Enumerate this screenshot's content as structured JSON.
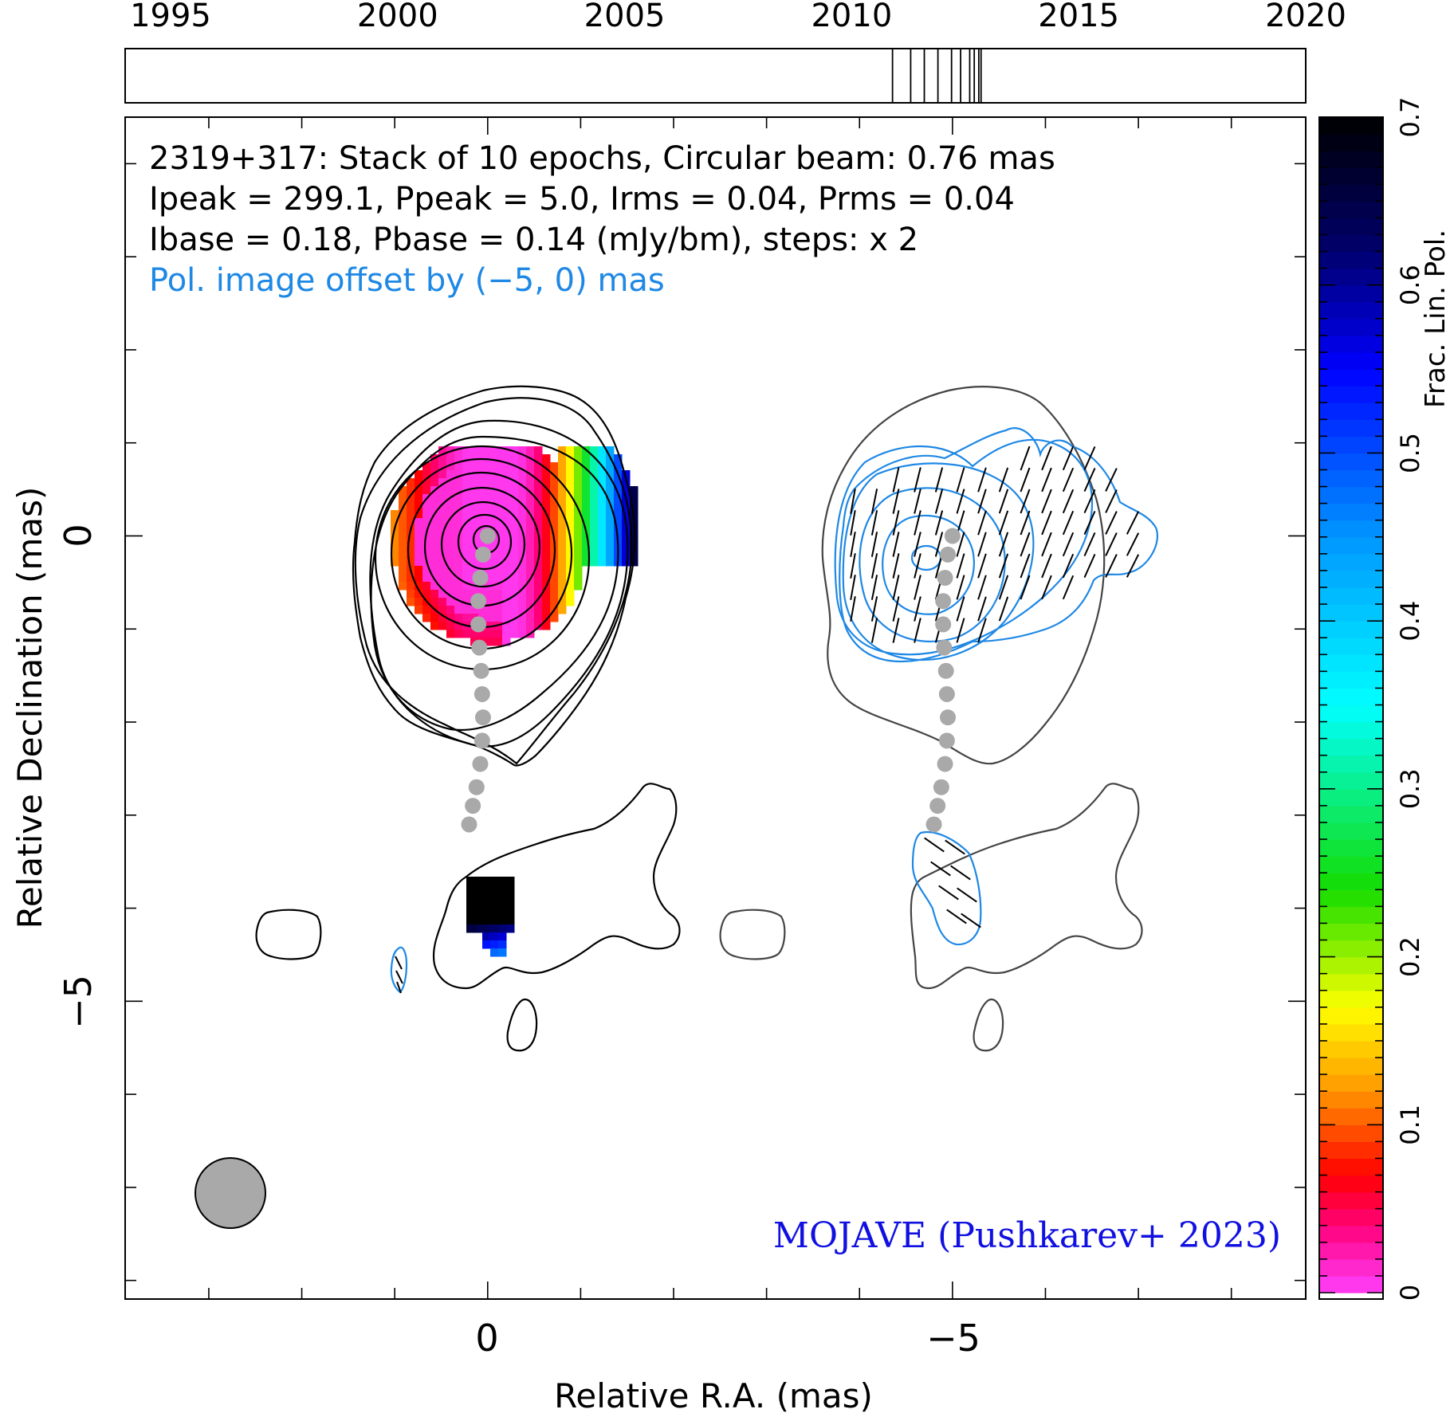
{
  "chart_data": {
    "type": "heatmap",
    "title_lines": [
      "2319+317: Stack of 10 epochs, Circular beam: 0.76 mas",
      "Ipeak = 299.1, Ppeak = 5.0, Irms = 0.04, Prms = 0.04",
      "Ibase = 0.18, Pbase = 0.14 (mJy/bm), steps: x 2"
    ],
    "offset_note": "Pol. image offset by (−5, 0) mas",
    "credit": "MOJAVE (Pushkarev+ 2023)",
    "xlabel": "Relative R.A. (mas)",
    "ylabel": "Relative Declination (mas)",
    "x_ticks": [
      "0",
      "−5"
    ],
    "y_ticks": [
      "0",
      "−5"
    ],
    "xlim": [
      3.9,
      -8.8
    ],
    "ylim": [
      -8.2,
      4.5
    ],
    "colorbar": {
      "label": "Frac. Lin. Pol.",
      "ticks": [
        "0",
        "0.1",
        "0.2",
        "0.3",
        "0.4",
        "0.5",
        "0.6",
        "0.7"
      ],
      "range": [
        0,
        0.7
      ]
    },
    "epoch_timeline": {
      "tick_labels": [
        "1995",
        "2000",
        "2005",
        "2010",
        "2015",
        "2020"
      ],
      "range": [
        1994,
        2020
      ],
      "epochs": [
        2010.9,
        2011.3,
        2011.6,
        2011.9,
        2012.2,
        2012.4,
        2012.6,
        2012.7,
        2012.8,
        2012.85
      ]
    },
    "beam_diameter_mas": 0.76,
    "ridge_line": {
      "x": [
        0.0,
        0.05,
        0.08,
        0.1,
        0.1,
        0.09,
        0.07,
        0.06,
        0.05,
        0.06,
        0.08,
        0.12,
        0.16,
        0.2
      ],
      "y": [
        0.0,
        -0.2,
        -0.45,
        -0.7,
        -0.95,
        -1.2,
        -1.45,
        -1.7,
        -1.95,
        -2.2,
        -2.45,
        -2.7,
        -2.9,
        -3.1
      ]
    }
  }
}
